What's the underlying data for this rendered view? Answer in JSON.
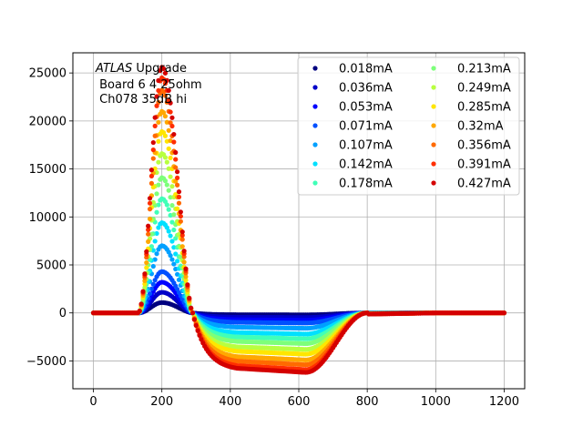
{
  "chart_data": {
    "type": "scatter",
    "title": "",
    "xlabel": "",
    "ylabel": "",
    "xlim": [
      -60,
      1260
    ],
    "ylim": [
      -7900,
      27100
    ],
    "xticks": [
      0,
      200,
      400,
      600,
      800,
      1000,
      1200
    ],
    "yticks": [
      -5000,
      0,
      5000,
      10000,
      15000,
      20000,
      25000
    ],
    "grid": true,
    "legend_placement": "top-right",
    "legend_columns": 2,
    "annotation": {
      "line1_italic": "ATLAS",
      "line1_rest": " Upgrade",
      "line2": " Board 6 4 25ohm",
      "line3": " Ch078 35dB hi"
    },
    "x_range": [
      0,
      1200
    ],
    "sample_step": 5,
    "pulse_shape": {
      "baseline_until_x": 130,
      "peak_x": 200,
      "zero_cross_x": 290,
      "undershoot_flat_from_x": 420,
      "undershoot_end_x": 620,
      "recovery_end_x": 800
    },
    "series": [
      {
        "name": "0.018mA",
        "color": "#00007f",
        "peak": 1080,
        "undershoot": -200
      },
      {
        "name": "0.036mA",
        "color": "#0000c8",
        "peak": 2150,
        "undershoot": -480
      },
      {
        "name": "0.053mA",
        "color": "#0000ff",
        "peak": 3200,
        "undershoot": -760
      },
      {
        "name": "0.071mA",
        "color": "#0050ff",
        "peak": 4300,
        "undershoot": -1050
      },
      {
        "name": "0.107mA",
        "color": "#00a0ff",
        "peak": 7000,
        "undershoot": -1600
      },
      {
        "name": "0.142mA",
        "color": "#00e0ff",
        "peak": 9400,
        "undershoot": -2200
      },
      {
        "name": "0.178mA",
        "color": "#40ffb8",
        "peak": 11900,
        "undershoot": -2700
      },
      {
        "name": "0.213mA",
        "color": "#7dff7a",
        "peak": 14100,
        "undershoot": -3200
      },
      {
        "name": "0.249mA",
        "color": "#b8ff40",
        "peak": 16600,
        "undershoot": -3800
      },
      {
        "name": "0.285mA",
        "color": "#ffe600",
        "peak": 18900,
        "undershoot": -4300
      },
      {
        "name": "0.32mA",
        "color": "#ffa800",
        "peak": 21000,
        "undershoot": -4900
      },
      {
        "name": "0.356mA",
        "color": "#ff6a00",
        "peak": 23200,
        "undershoot": -5400
      },
      {
        "name": "0.391mA",
        "color": "#ff2e00",
        "peak": 24500,
        "undershoot": -5900
      },
      {
        "name": "0.427mA",
        "color": "#d40000",
        "peak": 25600,
        "undershoot": -6200
      }
    ]
  }
}
